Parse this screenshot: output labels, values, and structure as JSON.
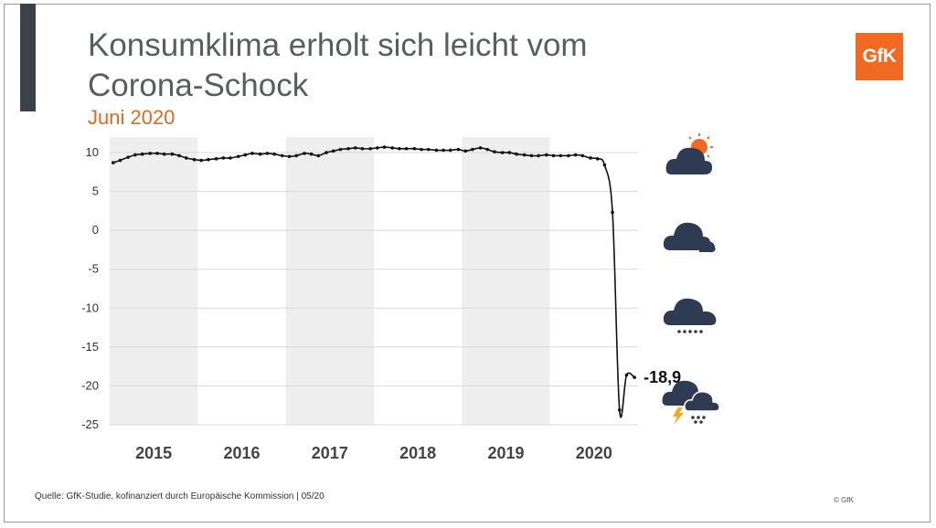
{
  "header": {
    "title_line1": "Konsumklima erholt sich leicht vom",
    "title_line2": "Corona-Schock",
    "subtitle": "Juni 2020",
    "logo_text": "GfK"
  },
  "footer": {
    "source": "Quelle: GfK-Studie, kofinanziert durch Europäische Kommission | 05/20",
    "copyright": "© GfK"
  },
  "icons": [
    "sun-cloud-icon",
    "cloud-icon",
    "rain-cloud-icon",
    "storm-cloud-icon"
  ],
  "colors": {
    "accent": "#e06a1d",
    "logo": "#f26a21",
    "line": "#111111",
    "icon": "#2f3b52",
    "band": "#eeeeee"
  },
  "chart_data": {
    "type": "line",
    "title": "",
    "xlabel": "",
    "ylabel": "",
    "ylim": [
      -25,
      12
    ],
    "yticks": [
      10,
      5,
      0,
      -5,
      -10,
      -15,
      -20,
      -25
    ],
    "xlim": [
      2014.5,
      2020.5
    ],
    "xtick_labels": [
      "2015",
      "2016",
      "2017",
      "2018",
      "2019",
      "2020"
    ],
    "xtick_positions": [
      2015,
      2016,
      2017,
      2018,
      2019,
      2020
    ],
    "shaded_years": [
      2015,
      2017,
      2019
    ],
    "grid": true,
    "annotation": {
      "label": "-18,9"
    },
    "series": [
      {
        "name": "",
        "x": [
          2014.54,
          2014.62,
          2014.71,
          2014.79,
          2014.87,
          2014.96,
          2015.04,
          2015.12,
          2015.21,
          2015.29,
          2015.37,
          2015.46,
          2015.54,
          2015.62,
          2015.71,
          2015.79,
          2015.87,
          2015.96,
          2016.04,
          2016.12,
          2016.21,
          2016.29,
          2016.37,
          2016.46,
          2016.54,
          2016.62,
          2016.71,
          2016.79,
          2016.87,
          2016.96,
          2017.04,
          2017.12,
          2017.21,
          2017.29,
          2017.37,
          2017.46,
          2017.54,
          2017.62,
          2017.71,
          2017.79,
          2017.87,
          2017.96,
          2018.04,
          2018.12,
          2018.21,
          2018.29,
          2018.37,
          2018.46,
          2018.54,
          2018.62,
          2018.71,
          2018.79,
          2018.87,
          2018.96,
          2019.04,
          2019.12,
          2019.21,
          2019.29,
          2019.37,
          2019.46,
          2019.54,
          2019.62,
          2019.71,
          2019.79,
          2019.87,
          2019.96,
          2020.04,
          2020.12,
          2020.21,
          2020.29,
          2020.37,
          2020.46
        ],
        "y": [
          8.7,
          9.0,
          9.4,
          9.7,
          9.8,
          9.9,
          9.9,
          9.8,
          9.8,
          9.6,
          9.3,
          9.1,
          9.0,
          9.1,
          9.2,
          9.3,
          9.3,
          9.5,
          9.7,
          9.9,
          9.8,
          9.9,
          9.8,
          9.6,
          9.5,
          9.6,
          9.9,
          9.8,
          9.6,
          10.0,
          10.2,
          10.4,
          10.5,
          10.6,
          10.5,
          10.5,
          10.6,
          10.7,
          10.6,
          10.5,
          10.5,
          10.5,
          10.4,
          10.4,
          10.3,
          10.3,
          10.3,
          10.4,
          10.2,
          10.4,
          10.6,
          10.4,
          10.1,
          10.0,
          10.0,
          9.8,
          9.7,
          9.6,
          9.6,
          9.7,
          9.6,
          9.6,
          9.6,
          9.7,
          9.6,
          9.3,
          9.2,
          8.4,
          2.3,
          -23.1,
          -18.6,
          -18.9
        ]
      }
    ]
  }
}
